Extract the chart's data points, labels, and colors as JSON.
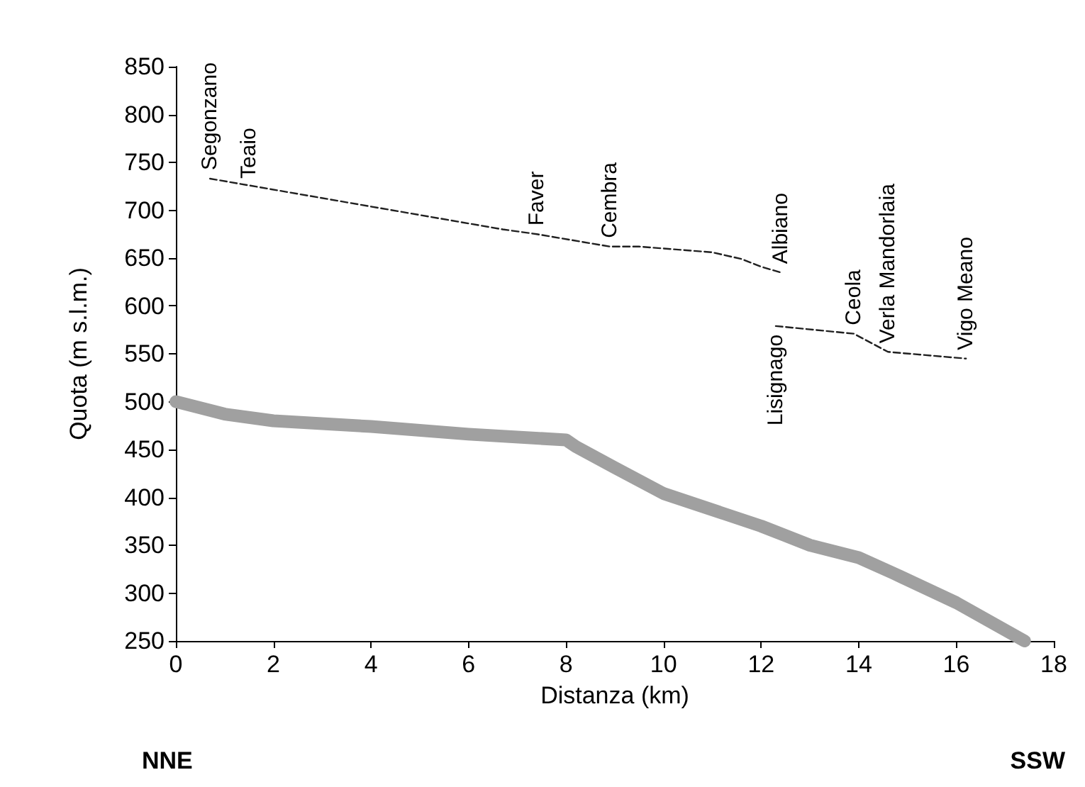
{
  "chart_data": {
    "type": "line",
    "xlabel": "Distanza (km)",
    "ylabel": "Quota (m s.l.m.)",
    "xlim": [
      0,
      18
    ],
    "xticks": [
      0,
      2,
      4,
      6,
      8,
      10,
      12,
      14,
      16,
      18
    ],
    "ylim": [
      250,
      850
    ],
    "yticks": [
      250,
      300,
      350,
      400,
      450,
      500,
      550,
      600,
      650,
      700,
      750,
      800,
      850
    ],
    "grid": false,
    "marker": "none",
    "series": [
      {
        "color": "#a0a0a0",
        "line_style": "solid",
        "x": [
          0,
          1,
          2,
          4,
          6,
          8,
          8.2,
          9,
          10,
          12,
          13,
          14,
          14.7,
          16,
          17.4
        ],
        "values": [
          500,
          487,
          480,
          474,
          466,
          460,
          453,
          431,
          404,
          370,
          350,
          337,
          321,
          290,
          250
        ]
      },
      {
        "color": "#202020",
        "line_style": "dashed",
        "x": [
          0.7,
          6.7,
          7.4,
          8.9,
          9.5,
          11.0,
          11.6,
          12.0,
          12.4,
          12.35,
          12.3,
          13.9,
          14.6,
          16.2
        ],
        "values": [
          733,
          680,
          675,
          662,
          662,
          656,
          649,
          641,
          635,
          null,
          579,
          571,
          552,
          545
        ]
      }
    ],
    "annotations": [
      {
        "text": "Segonzano",
        "x": 0.7,
        "y": 733
      },
      {
        "text": "Teaio",
        "x": 1.5,
        "y": 724
      },
      {
        "text": "Faver",
        "x": 7.4,
        "y": 675
      },
      {
        "text": "Cembra",
        "x": 8.9,
        "y": 662
      },
      {
        "text": "Albiano",
        "x": 12.4,
        "y": 635
      },
      {
        "text": "Lisignago",
        "x": 12.3,
        "y": 579
      },
      {
        "text": "Ceola",
        "x": 13.9,
        "y": 571
      },
      {
        "text": "Verla Mandorlaia",
        "x": 14.6,
        "y": 552
      },
      {
        "text": "Vigo Meano",
        "x": 16.2,
        "y": 545
      },
      "NNE",
      "SSW"
    ]
  }
}
